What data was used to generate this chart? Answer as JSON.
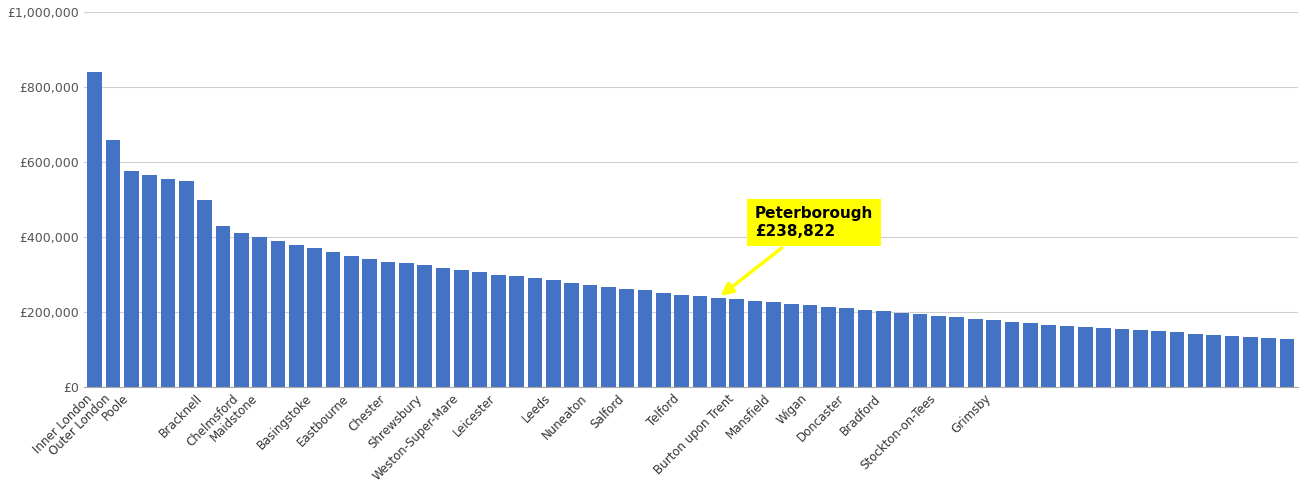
{
  "bar_color": "#4472c4",
  "background_color": "#ffffff",
  "grid_color": "#d0d0d0",
  "ytick_values": [
    0,
    200000,
    400000,
    600000,
    800000,
    1000000
  ],
  "ylabel_ticks": [
    "£0",
    "£200,000",
    "£400,000",
    "£600,000",
    "£800,000",
    "£1,000,000"
  ],
  "highlight_label": "Peterborough\n£238,822",
  "highlight_bg": "#ffff00",
  "peterborough_value": 238822,
  "all_values": [
    840000,
    660000,
    575000,
    565000,
    555000,
    550000,
    500000,
    430000,
    410000,
    400000,
    390000,
    380000,
    370000,
    360000,
    350000,
    342000,
    335000,
    330000,
    325000,
    318000,
    312000,
    306000,
    300000,
    296000,
    290000,
    285000,
    278000,
    272000,
    268000,
    263000,
    258000,
    252000,
    247000,
    242000,
    238822,
    234000,
    230000,
    226000,
    222000,
    218000,
    214000,
    210000,
    206000,
    202000,
    198000,
    194000,
    190000,
    186000,
    182000,
    178000,
    174000,
    170000,
    167000,
    164000,
    161000,
    158000,
    155000,
    152000,
    149000,
    146000,
    143000,
    140000,
    137000,
    134000,
    131000,
    128000
  ],
  "labeled": {
    "0": "Inner London",
    "1": "Outer London",
    "2": "Poole",
    "6": "Bracknell",
    "8": "Chelmsford",
    "9": "Maidstone",
    "12": "Basingstoke",
    "14": "Eastbourne",
    "16": "Chester",
    "18": "Shrewsbury",
    "20": "Weston-Super-Mare",
    "22": "Leicester",
    "25": "Leeds",
    "27": "Nuneaton",
    "29": "Salford",
    "32": "Telford",
    "35": "Burton upon Trent",
    "37": "Mansfield",
    "39": "Wigan",
    "41": "Doncaster",
    "43": "Bradford",
    "46": "Stockton-on-Tees",
    "49": "Grimsby"
  },
  "peterborough_idx": 34
}
